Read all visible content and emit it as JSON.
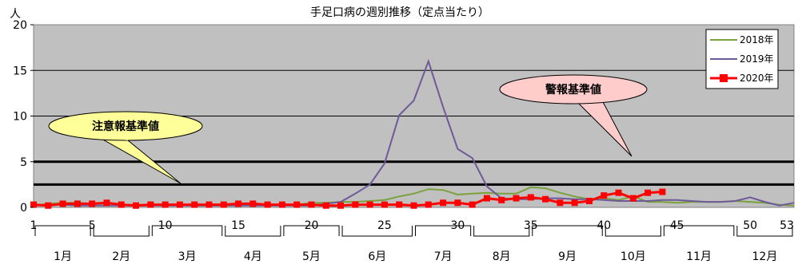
{
  "chart_data": {
    "type": "line",
    "title": "手足口病の週別推移（定点当たり）",
    "ylabel": "人",
    "ylim": [
      0,
      20
    ],
    "yticks": [
      "0",
      "5",
      "10",
      "15",
      "20"
    ],
    "xlim": [
      1,
      53
    ],
    "xticks": [
      {
        "week": 1,
        "label": "1"
      },
      {
        "week": 5,
        "label": "5"
      },
      {
        "week": 10,
        "label": "10"
      },
      {
        "week": 15,
        "label": "15"
      },
      {
        "week": 20,
        "label": "20"
      },
      {
        "week": 25,
        "label": "25"
      },
      {
        "week": 30,
        "label": "30"
      },
      {
        "week": 35,
        "label": "35"
      },
      {
        "week": 40,
        "label": "40"
      },
      {
        "week": 45,
        "label": "45"
      },
      {
        "week": 50,
        "label": "50"
      },
      {
        "week": 53,
        "label": "53"
      }
    ],
    "months": [
      {
        "label": "1月",
        "start": 1,
        "end": 5
      },
      {
        "label": "2月",
        "start": 5,
        "end": 9
      },
      {
        "label": "3月",
        "start": 9,
        "end": 14
      },
      {
        "label": "4月",
        "start": 14,
        "end": 18
      },
      {
        "label": "5月",
        "start": 18,
        "end": 22
      },
      {
        "label": "6月",
        "start": 22,
        "end": 27
      },
      {
        "label": "7月",
        "start": 27,
        "end": 31
      },
      {
        "label": "8月",
        "start": 31,
        "end": 35
      },
      {
        "label": "9月",
        "start": 35,
        "end": 40
      },
      {
        "label": "10月",
        "start": 40,
        "end": 44
      },
      {
        "label": "11月",
        "start": 44,
        "end": 49
      },
      {
        "label": "12月",
        "start": 49,
        "end": 53
      }
    ],
    "grid": true,
    "legend_position": "top-right",
    "series": [
      {
        "name": "2018年",
        "color": "#7aa23c",
        "marker": "none",
        "values": [
          0.2,
          0.4,
          0.5,
          0.5,
          0.4,
          0.4,
          0.3,
          0.3,
          0.3,
          0.3,
          0.3,
          0.3,
          0.3,
          0.3,
          0.3,
          0.3,
          0.3,
          0.3,
          0.3,
          0.5,
          0.5,
          0.6,
          0.6,
          0.7,
          0.8,
          1.2,
          1.5,
          2.0,
          1.9,
          1.4,
          1.5,
          1.6,
          1.5,
          1.5,
          2.2,
          2.1,
          1.6,
          1.2,
          0.9,
          1.0,
          0.8,
          1.2,
          0.6,
          0.6,
          0.5,
          0.6,
          0.6,
          0.6,
          0.7,
          0.6,
          0.5,
          0.3,
          0.2
        ]
      },
      {
        "name": "2019年",
        "color": "#6e5a98",
        "marker": "none",
        "values": [
          0.2,
          0.3,
          0.3,
          0.2,
          0.2,
          0.2,
          0.2,
          0.2,
          0.2,
          0.2,
          0.2,
          0.2,
          0.2,
          0.2,
          0.2,
          0.2,
          0.2,
          0.2,
          0.2,
          0.2,
          0.4,
          0.6,
          1.5,
          2.5,
          4.8,
          10.1,
          11.7,
          16.0,
          11.0,
          6.4,
          5.4,
          2.3,
          1.0,
          0.9,
          0.9,
          1.0,
          1.0,
          0.9,
          0.9,
          0.8,
          0.7,
          0.7,
          0.7,
          0.8,
          0.8,
          0.7,
          0.6,
          0.6,
          0.7,
          1.1,
          0.6,
          0.2,
          0.5
        ]
      },
      {
        "name": "2020年",
        "color": "#ff0000",
        "marker": "square",
        "values": [
          0.3,
          0.2,
          0.4,
          0.4,
          0.4,
          0.5,
          0.3,
          0.2,
          0.3,
          0.3,
          0.3,
          0.3,
          0.3,
          0.3,
          0.4,
          0.4,
          0.3,
          0.3,
          0.3,
          0.3,
          0.2,
          0.2,
          0.3,
          0.3,
          0.3,
          0.3,
          0.2,
          0.3,
          0.5,
          0.5,
          0.3,
          1.0,
          0.8,
          1.0,
          1.1,
          0.9,
          0.5,
          0.5,
          0.7,
          1.3,
          1.6,
          1.0,
          1.6,
          1.7
        ]
      }
    ],
    "reference_lines": [
      {
        "name": "警報基準値",
        "value": 5
      },
      {
        "name": "注意報基準値",
        "value": 2.5
      }
    ],
    "annotations": [
      {
        "text": "注意報基準値"
      },
      {
        "text": "警報基準値"
      }
    ]
  }
}
